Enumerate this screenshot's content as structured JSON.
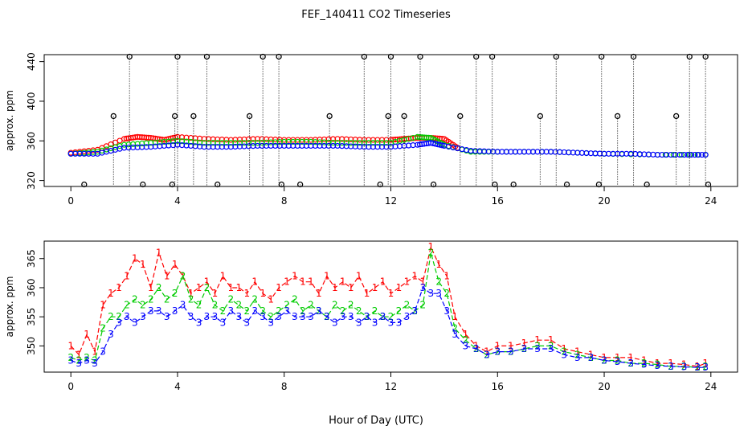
{
  "title": "FEF_140411  CO2 Timeseries",
  "xlabel": "Hour of Day (UTC)",
  "chart_data": [
    {
      "type": "scatter",
      "panel": "top",
      "xlabel": "",
      "ylabel": "approx. ppm",
      "xlim": [
        -1,
        25
      ],
      "ylim": [
        314,
        447
      ],
      "xticks": [
        0,
        4,
        8,
        12,
        16,
        20,
        24
      ],
      "yticks": [
        320,
        360,
        400,
        440
      ],
      "colors": {
        "series1": "#ff0000",
        "series2": "#00cc00",
        "series3": "#0000ff",
        "outliers": "#000000",
        "cal": "#00cccc"
      },
      "series": [
        {
          "key": "series1",
          "x": [
            0,
            1,
            2,
            2.5,
            3,
            3.5,
            4,
            5,
            6,
            7,
            8,
            9,
            10,
            11,
            12,
            12.5,
            13,
            13.5,
            14,
            14.5
          ],
          "values": [
            348,
            351,
            362,
            364,
            363,
            361,
            364,
            362,
            361,
            362,
            361,
            361,
            362,
            361,
            361,
            362,
            363,
            363,
            362,
            353
          ]
        },
        {
          "key": "series2",
          "x": [
            0,
            1,
            2,
            3,
            4,
            5,
            6,
            7,
            8,
            9,
            10,
            11,
            12,
            13,
            13.5,
            14,
            15,
            16,
            18,
            20,
            22,
            23.8
          ],
          "values": [
            347,
            349,
            356,
            358,
            360,
            358,
            358,
            358,
            359,
            359,
            358,
            358,
            358,
            364,
            363,
            356,
            349,
            349,
            349,
            347,
            346,
            346
          ]
        },
        {
          "key": "series3",
          "x": [
            0,
            1,
            2,
            3,
            4,
            5,
            6,
            7,
            8,
            9,
            10,
            11,
            12,
            13,
            13.5,
            14,
            15,
            16,
            17,
            18,
            19,
            20,
            21,
            22,
            23,
            23.8
          ],
          "values": [
            347,
            347,
            353,
            354,
            356,
            354,
            354,
            355,
            355,
            355,
            355,
            354,
            354,
            356,
            358,
            355,
            350,
            349,
            349,
            349,
            348,
            347,
            347,
            346,
            346,
            346
          ]
        },
        {
          "key": "outliers",
          "x": [
            0.5,
            1.6,
            2.2,
            2.7,
            3.8,
            3.9,
            4.0,
            4.6,
            5.1,
            5.5,
            6.7,
            7.2,
            7.8,
            7.9,
            8.6,
            9.7,
            11.0,
            11.6,
            11.9,
            12.0,
            12.5,
            13.1,
            13.6,
            14.6,
            15.2,
            15.8,
            15.9,
            16.6,
            17.6,
            18.2,
            18.6,
            19.8,
            19.9,
            20.5,
            21.1,
            21.6,
            22.7,
            23.2,
            23.8,
            23.9
          ],
          "values": [
            316,
            385,
            445,
            316,
            316,
            385,
            445,
            385,
            445,
            316,
            385,
            445,
            445,
            316,
            316,
            385,
            445,
            316,
            385,
            445,
            385,
            445,
            316,
            385,
            445,
            445,
            316,
            316,
            385,
            445,
            316,
            316,
            445,
            385,
            445,
            316,
            385,
            445,
            445,
            316
          ]
        }
      ]
    },
    {
      "type": "line",
      "panel": "bottom",
      "xlabel": "Hour of Day (UTC)",
      "ylabel": "approx. ppm",
      "xlim": [
        -1,
        25
      ],
      "ylim": [
        345.5,
        368
      ],
      "xticks": [
        0,
        4,
        8,
        12,
        16,
        20,
        24
      ],
      "yticks": [
        350,
        355,
        360,
        365
      ],
      "colors": {
        "series1": "#ff0000",
        "series2": "#00cc00",
        "series3": "#0000ff"
      },
      "series": [
        {
          "key": "series1",
          "symbol": "1",
          "x": [
            0,
            0.3,
            0.6,
            0.9,
            1.2,
            1.5,
            1.8,
            2.1,
            2.4,
            2.7,
            3.0,
            3.3,
            3.6,
            3.9,
            4.2,
            4.5,
            4.8,
            5.1,
            5.4,
            5.7,
            6.0,
            6.3,
            6.6,
            6.9,
            7.2,
            7.5,
            7.8,
            8.1,
            8.4,
            8.7,
            9.0,
            9.3,
            9.6,
            9.9,
            10.2,
            10.5,
            10.8,
            11.1,
            11.4,
            11.7,
            12.0,
            12.3,
            12.6,
            12.9,
            13.2,
            13.5,
            13.8,
            14.1,
            14.4,
            14.8,
            15.2,
            15.6,
            16.0,
            16.5,
            17.0,
            17.5,
            18.0,
            18.5,
            19.0,
            19.5,
            20.0,
            20.5,
            21.0,
            21.5,
            22.0,
            22.5,
            23.0,
            23.5,
            23.8
          ],
          "values": [
            350,
            348.5,
            352,
            349,
            357,
            359,
            360,
            362,
            365,
            364,
            360,
            366,
            362,
            364,
            362,
            359,
            360,
            361,
            359,
            362,
            360,
            360,
            359,
            361,
            359,
            358,
            360,
            361,
            362,
            361,
            361,
            359,
            362,
            360,
            361,
            360,
            362,
            359,
            360,
            361,
            359,
            360,
            361,
            362,
            361,
            367,
            364,
            362,
            355,
            352,
            350,
            349,
            350,
            350,
            350.5,
            351,
            351,
            349.5,
            349,
            348.5,
            348,
            348,
            348,
            347.5,
            347,
            347,
            346.8,
            346.5,
            347
          ]
        },
        {
          "key": "series2",
          "symbol": "2",
          "x": [
            0,
            0.3,
            0.6,
            0.9,
            1.2,
            1.5,
            1.8,
            2.1,
            2.4,
            2.7,
            3.0,
            3.3,
            3.6,
            3.9,
            4.2,
            4.5,
            4.8,
            5.1,
            5.4,
            5.7,
            6.0,
            6.3,
            6.6,
            6.9,
            7.2,
            7.5,
            7.8,
            8.1,
            8.4,
            8.7,
            9.0,
            9.3,
            9.6,
            9.9,
            10.2,
            10.5,
            10.8,
            11.1,
            11.4,
            11.7,
            12.0,
            12.3,
            12.6,
            12.9,
            13.2,
            13.5,
            13.8,
            14.1,
            14.4,
            14.8,
            15.2,
            15.6,
            16.0,
            16.5,
            17.0,
            17.5,
            18.0,
            18.5,
            19.0,
            19.5,
            20.0,
            20.5,
            21.0,
            21.5,
            22.0,
            22.5,
            23.0,
            23.5,
            23.8
          ],
          "values": [
            348,
            347.5,
            348,
            347.5,
            353,
            355,
            355,
            357,
            358,
            357,
            358,
            360,
            358,
            359,
            362,
            358,
            357,
            360,
            357,
            356,
            358,
            357,
            356,
            358,
            356,
            355,
            356,
            357,
            358,
            356,
            357,
            356,
            355,
            357,
            356,
            357,
            356,
            355,
            356,
            355,
            355,
            356,
            357,
            356,
            357,
            366,
            361,
            359,
            353,
            351,
            349.5,
            348.5,
            349,
            349,
            349.5,
            350,
            350,
            349,
            348.5,
            348,
            347.5,
            347.5,
            347,
            347,
            346.8,
            346.5,
            346.5,
            346.3,
            346.5
          ]
        },
        {
          "key": "series3",
          "symbol": "3",
          "x": [
            0,
            0.3,
            0.6,
            0.9,
            1.2,
            1.5,
            1.8,
            2.1,
            2.4,
            2.7,
            3.0,
            3.3,
            3.6,
            3.9,
            4.2,
            4.5,
            4.8,
            5.1,
            5.4,
            5.7,
            6.0,
            6.3,
            6.6,
            6.9,
            7.2,
            7.5,
            7.8,
            8.1,
            8.4,
            8.7,
            9.0,
            9.3,
            9.6,
            9.9,
            10.2,
            10.5,
            10.8,
            11.1,
            11.4,
            11.7,
            12.0,
            12.3,
            12.6,
            12.9,
            13.2,
            13.5,
            13.8,
            14.1,
            14.4,
            14.8,
            15.2,
            15.6,
            16.0,
            16.5,
            17.0,
            17.5,
            18.0,
            18.5,
            19.0,
            19.5,
            20.0,
            20.5,
            21.0,
            21.5,
            22.0,
            22.5,
            23.0,
            23.5,
            23.8
          ],
          "values": [
            347.5,
            347,
            347.5,
            347,
            349,
            352,
            354,
            355,
            354,
            355,
            356,
            356,
            355,
            356,
            357,
            355,
            354,
            355,
            355,
            354,
            356,
            355,
            354,
            356,
            355,
            354,
            355,
            356,
            355,
            355,
            355,
            356,
            355,
            354,
            355,
            355,
            354,
            355,
            354,
            355,
            354,
            354,
            355,
            356,
            360,
            359,
            359,
            356,
            352,
            350,
            349.5,
            348.5,
            349,
            349,
            349.5,
            349.5,
            349.5,
            348.5,
            348,
            348,
            347.5,
            347.3,
            347,
            346.8,
            346.6,
            346.5,
            346.4,
            346.3,
            346.3
          ]
        }
      ]
    }
  ]
}
